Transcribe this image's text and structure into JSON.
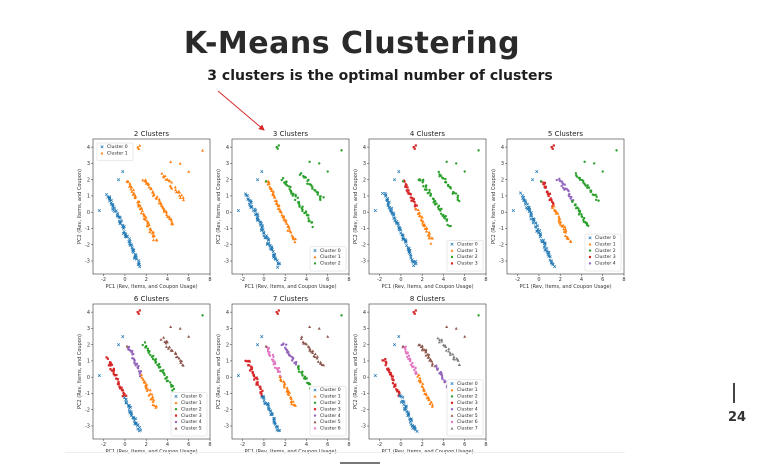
{
  "slide": {
    "title": "K-Means Clustering",
    "subtitle": "3 clusters is the optimal number of clusters",
    "page_number": "24"
  },
  "palette": [
    "#1f77b4",
    "#ff7f0e",
    "#2ca02c",
    "#d62728",
    "#9467bd",
    "#8c564b",
    "#e377c2",
    "#7f7f7f"
  ],
  "chart_data": [
    {
      "type": "scatter",
      "title": "2 Clusters",
      "k": 2,
      "xlabel": "PC1 (Rev, Items, and Coupon Usage)",
      "ylabel": "PC2 (Rev, Items, and Coupon)",
      "xlim": [
        -3,
        8
      ],
      "ylim": [
        -3.8,
        4.5
      ],
      "xticks": [
        -2,
        0,
        2,
        4,
        6,
        8
      ],
      "yticks": [
        -3,
        -2,
        -1,
        0,
        1,
        2,
        3,
        4
      ],
      "legend_loc": "top-left",
      "series": [
        {
          "name": "Cluster 0"
        },
        {
          "name": "Cluster 1"
        }
      ]
    },
    {
      "type": "scatter",
      "title": "3 Clusters",
      "k": 3,
      "xlabel": "PC1 (Rev, Items, and Coupon Usage)",
      "ylabel": "PC2 (Rev, Items, and Coupon)",
      "xlim": [
        -3,
        8
      ],
      "ylim": [
        -3.8,
        4.5
      ],
      "xticks": [
        -2,
        0,
        2,
        4,
        6,
        8
      ],
      "yticks": [
        -3,
        -2,
        -1,
        0,
        1,
        2,
        3,
        4
      ],
      "legend_loc": "bottom-right",
      "series": [
        {
          "name": "Cluster 0"
        },
        {
          "name": "Cluster 1"
        },
        {
          "name": "Cluster 2"
        }
      ]
    },
    {
      "type": "scatter",
      "title": "4 Clusters",
      "k": 4,
      "xlabel": "PC1 (Rev, Items, and Coupon Usage)",
      "ylabel": "PC2 (Rev, Items, and Coupon)",
      "xlim": [
        -3,
        8
      ],
      "ylim": [
        -3.8,
        4.5
      ],
      "xticks": [
        -2,
        0,
        2,
        4,
        6,
        8
      ],
      "yticks": [
        -3,
        -2,
        -1,
        0,
        1,
        2,
        3,
        4
      ],
      "legend_loc": "bottom-right",
      "series": [
        {
          "name": "Cluster 0"
        },
        {
          "name": "Cluster 1"
        },
        {
          "name": "Cluster 2"
        },
        {
          "name": "Cluster 3"
        }
      ]
    },
    {
      "type": "scatter",
      "title": "5 Clusters",
      "k": 5,
      "xlabel": "PC1 (Rev, Items, and Coupon Usage)",
      "ylabel": "PC2 (Rev, Items, and Coupon)",
      "xlim": [
        -3,
        8
      ],
      "ylim": [
        -3.8,
        4.5
      ],
      "xticks": [
        -2,
        0,
        2,
        4,
        6,
        8
      ],
      "yticks": [
        -3,
        -2,
        -1,
        0,
        1,
        2,
        3,
        4
      ],
      "legend_loc": "bottom-right",
      "series": [
        {
          "name": "Cluster 0"
        },
        {
          "name": "Cluster 1"
        },
        {
          "name": "Cluster 2"
        },
        {
          "name": "Cluster 3"
        },
        {
          "name": "Cluster 4"
        }
      ]
    },
    {
      "type": "scatter",
      "title": "6 Clusters",
      "k": 6,
      "xlabel": "PC1 (Rev, Items, and Coupon Usage)",
      "ylabel": "PC2 (Rev, Items, and Coupon)",
      "xlim": [
        -3,
        8
      ],
      "ylim": [
        -3.8,
        4.5
      ],
      "xticks": [
        -2,
        0,
        2,
        4,
        6,
        8
      ],
      "yticks": [
        -3,
        -2,
        -1,
        0,
        1,
        2,
        3,
        4
      ],
      "legend_loc": "bottom-right",
      "series": [
        {
          "name": "Cluster 0"
        },
        {
          "name": "Cluster 1"
        },
        {
          "name": "Cluster 2"
        },
        {
          "name": "Cluster 3"
        },
        {
          "name": "Cluster 4"
        },
        {
          "name": "Cluster 5"
        }
      ]
    },
    {
      "type": "scatter",
      "title": "7 Clusters",
      "k": 7,
      "xlabel": "PC1 (Rev, Items, and Coupon Usage)",
      "ylabel": "PC2 (Rev, Items, and Coupon)",
      "xlim": [
        -3,
        8
      ],
      "ylim": [
        -3.8,
        4.5
      ],
      "xticks": [
        -2,
        0,
        2,
        4,
        6,
        8
      ],
      "yticks": [
        -3,
        -2,
        -1,
        0,
        1,
        2,
        3,
        4
      ],
      "legend_loc": "bottom-right",
      "series": [
        {
          "name": "Cluster 0"
        },
        {
          "name": "Cluster 1"
        },
        {
          "name": "Cluster 2"
        },
        {
          "name": "Cluster 3"
        },
        {
          "name": "Cluster 4"
        },
        {
          "name": "Cluster 5"
        },
        {
          "name": "Cluster 6"
        }
      ]
    },
    {
      "type": "scatter",
      "title": "8 Clusters",
      "k": 8,
      "xlabel": "PC1 (Rev, Items, and Coupon Usage)",
      "ylabel": "PC2 (Rev, Items, and Coupon)",
      "xlim": [
        -3,
        8
      ],
      "ylim": [
        -3.8,
        4.5
      ],
      "xticks": [
        -2,
        0,
        2,
        4,
        6,
        8
      ],
      "yticks": [
        -3,
        -2,
        -1,
        0,
        1,
        2,
        3,
        4
      ],
      "legend_loc": "bottom-right",
      "series": [
        {
          "name": "Cluster 0"
        },
        {
          "name": "Cluster 1"
        },
        {
          "name": "Cluster 2"
        },
        {
          "name": "Cluster 3"
        },
        {
          "name": "Cluster 4"
        },
        {
          "name": "Cluster 5"
        },
        {
          "name": "Cluster 6"
        },
        {
          "name": "Cluster 7"
        }
      ]
    }
  ]
}
